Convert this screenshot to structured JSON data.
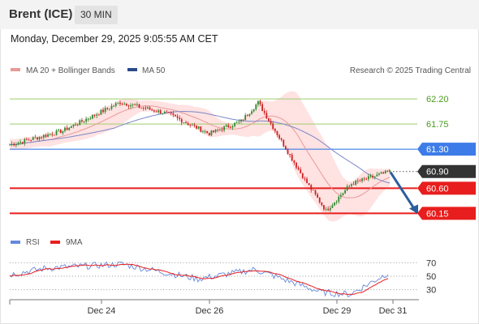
{
  "header": {
    "instrument": "Brent (ICE)",
    "timeframe": "30 MIN"
  },
  "datetime": "Monday, December 29, 2025 9:05:55 AM CET",
  "legend": {
    "bollinger": "MA 20 + Bollinger Bands",
    "ma50": "MA 50",
    "credit": "Research © 2025 Trading Central"
  },
  "rsi_legend": {
    "rsi": "RSI",
    "ma9": "9MA"
  },
  "colors": {
    "up": "#2e8b2e",
    "down": "#cc2222",
    "band_fill": "#ffd8d8",
    "ma20": "#e89999",
    "ma50": "#7b86c8",
    "resistance": "#9fce6b",
    "pivot": "#3d7ce8",
    "support": "#e81e1e",
    "current": "#333333",
    "arrow": "#2b5e9e",
    "rsi": "#6688dd"
  },
  "chart_data": [
    {
      "type": "candlestick",
      "price_axis": {
        "ylim": [
          60.04,
          62.42
        ]
      },
      "levels": [
        {
          "value": "62.20",
          "kind": "resistance"
        },
        {
          "value": "61.75",
          "kind": "resistance"
        },
        {
          "value": "61.30",
          "kind": "pivot"
        },
        {
          "value": "60.90",
          "kind": "current"
        },
        {
          "value": "60.60",
          "kind": "support"
        },
        {
          "value": "60.15",
          "kind": "support"
        }
      ],
      "forecast": {
        "direction": "down",
        "from": 60.9,
        "to": 60.15
      },
      "x_ticks": [
        "Dec 24",
        "Dec 26",
        "Dec 29",
        "Dec 31"
      ],
      "segments": [
        {
          "n": 26,
          "start": 61.37,
          "end": 61.63
        },
        {
          "n": 27,
          "start": 61.63,
          "end": 62.14
        },
        {
          "n": 22,
          "start": 62.14,
          "end": 61.94
        },
        {
          "n": 20,
          "start": 61.94,
          "end": 61.58
        },
        {
          "n": 15,
          "start": 61.58,
          "end": 61.8
        },
        {
          "n": 8,
          "start": 61.8,
          "end": 62.14
        },
        {
          "n": 22,
          "start": 62.14,
          "end": 60.75
        },
        {
          "n": 10,
          "start": 60.75,
          "end": 60.2
        },
        {
          "n": 12,
          "start": 60.2,
          "end": 60.68
        },
        {
          "n": 18,
          "start": 60.68,
          "end": 60.9
        }
      ]
    },
    {
      "type": "line",
      "title": "RSI",
      "ylim": [
        15,
        85
      ],
      "y_ticks": [
        70,
        50,
        30
      ],
      "segments": [
        {
          "n": 20,
          "start": 52,
          "end": 62
        },
        {
          "n": 40,
          "start": 62,
          "end": 68
        },
        {
          "n": 40,
          "start": 68,
          "end": 46
        },
        {
          "n": 30,
          "start": 46,
          "end": 60
        },
        {
          "n": 35,
          "start": 60,
          "end": 26
        },
        {
          "n": 15,
          "start": 26,
          "end": 23
        },
        {
          "n": 20,
          "start": 23,
          "end": 55
        }
      ]
    }
  ]
}
